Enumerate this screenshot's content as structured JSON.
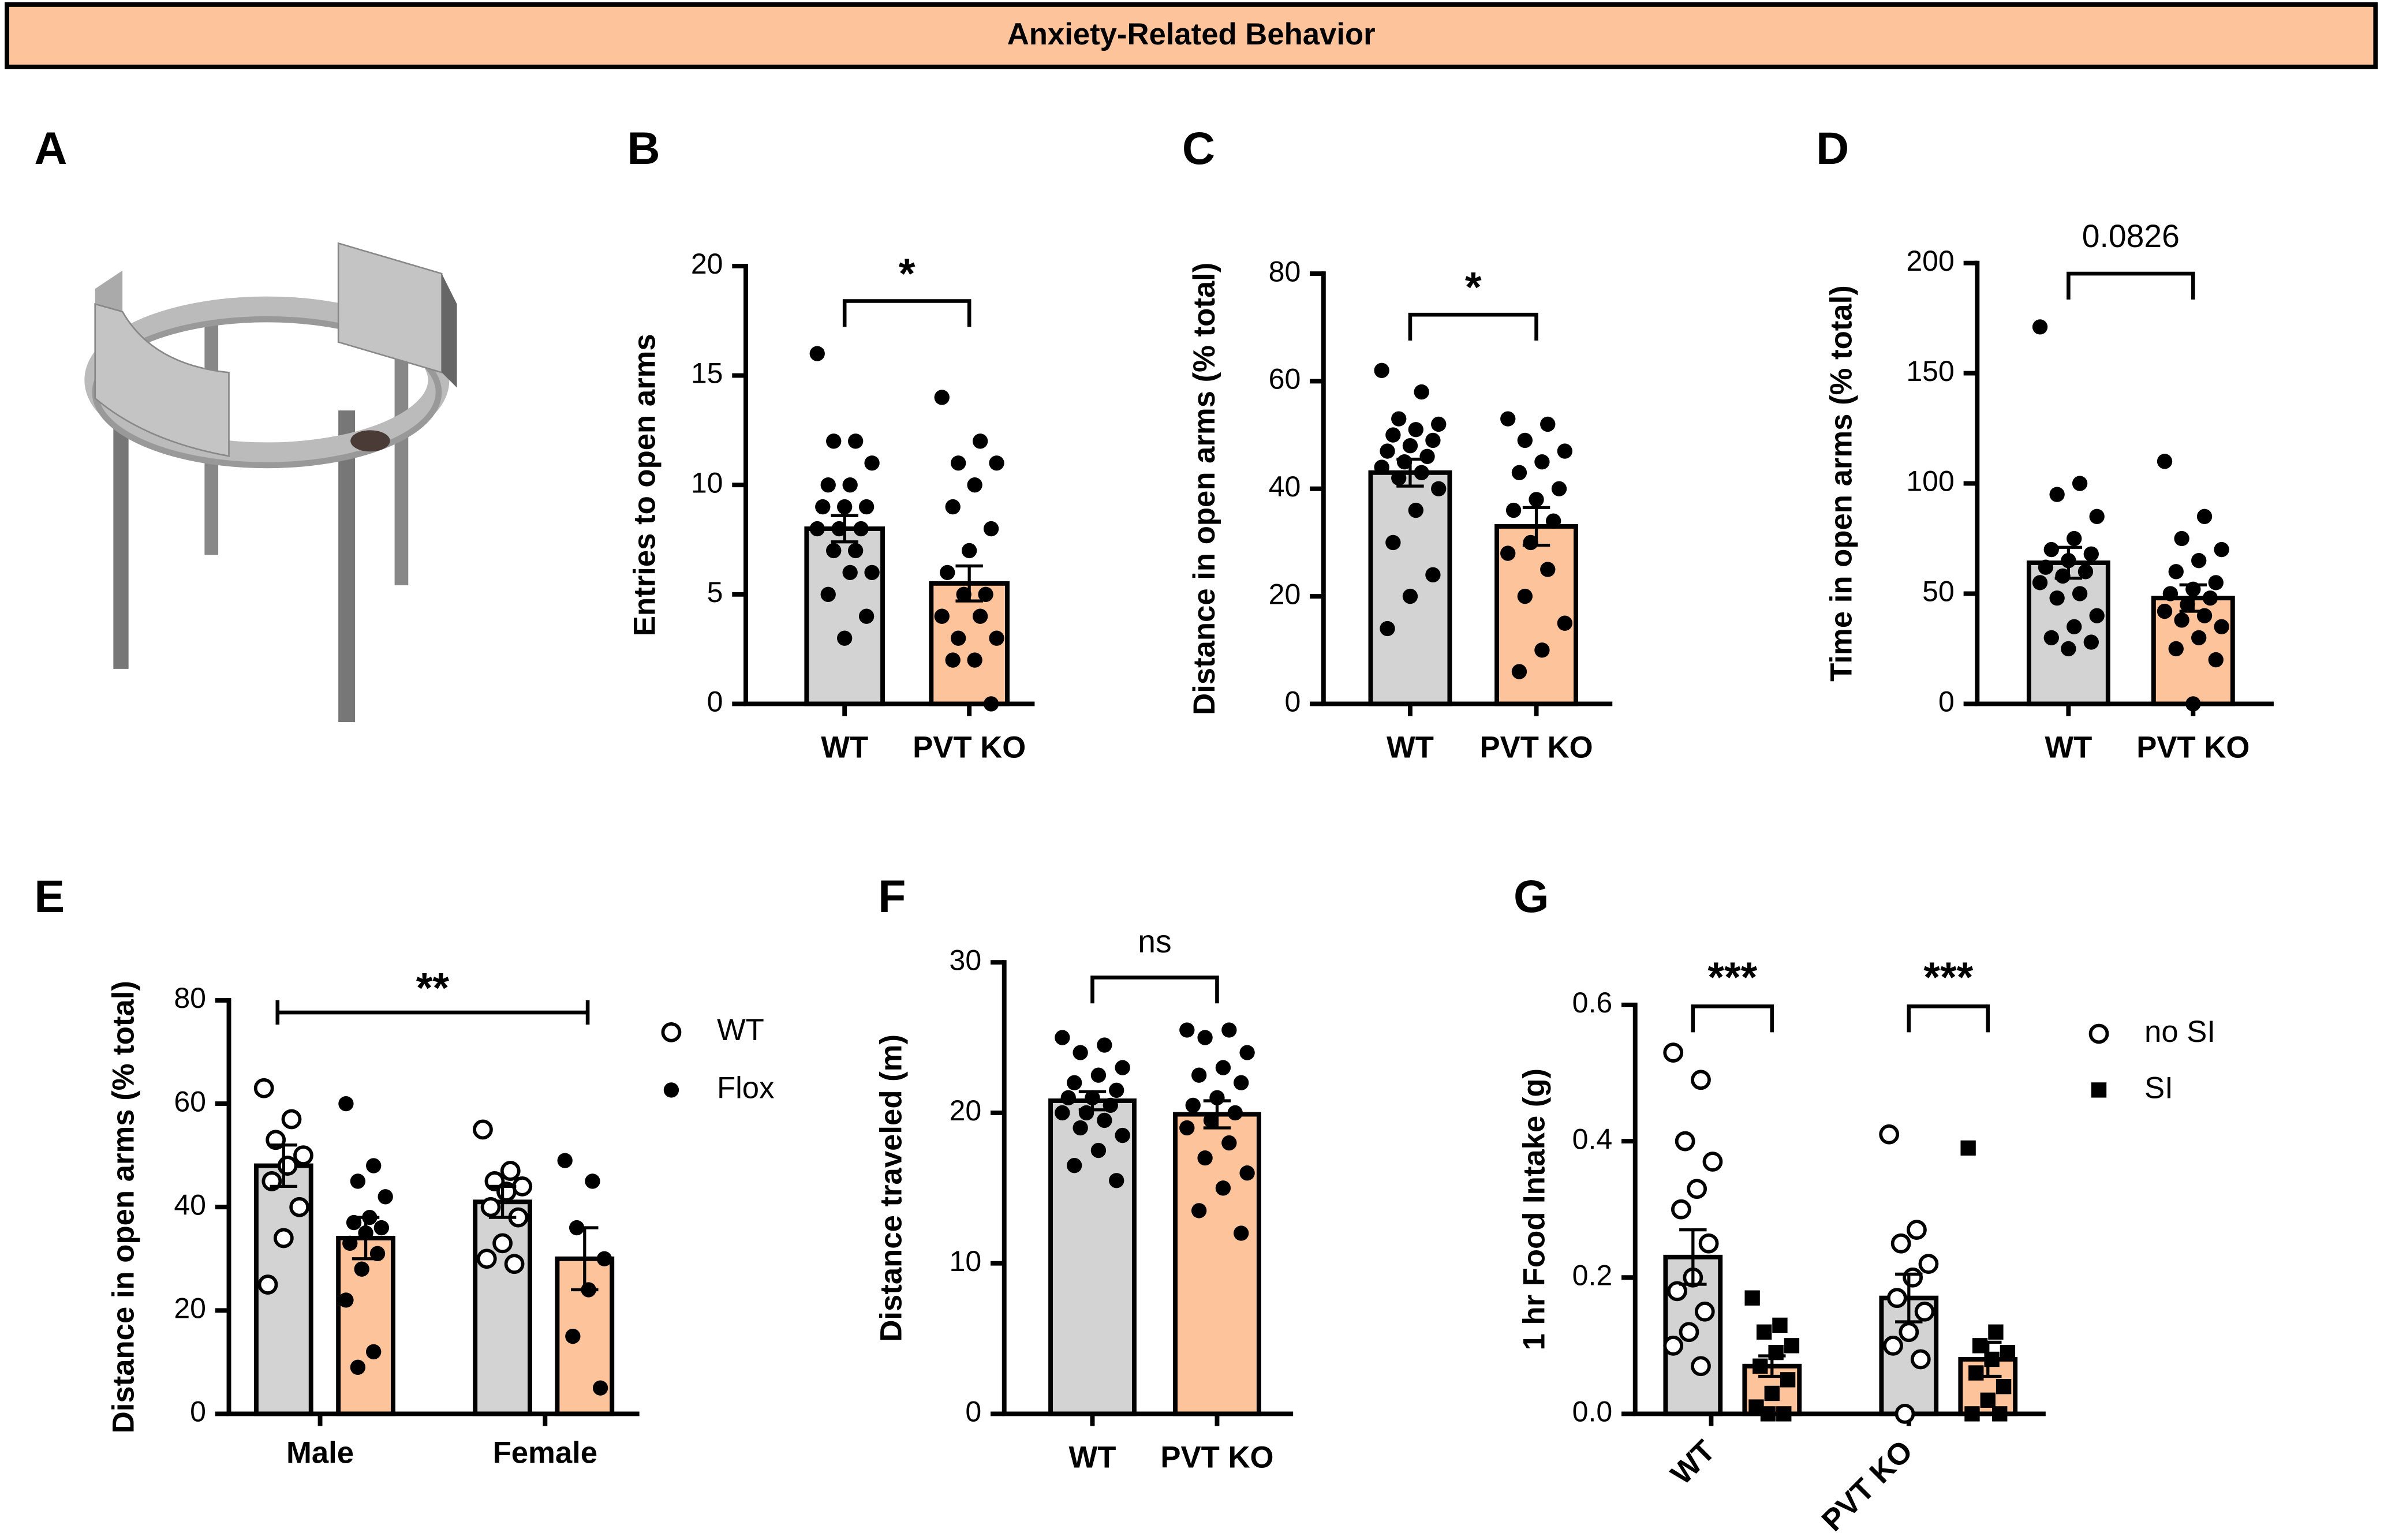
{
  "header": {
    "title": "Anxiety-Related Behavior"
  },
  "illustration": {
    "panel": "A"
  },
  "chart_data": [
    {
      "type": "bar",
      "panel": "B",
      "ylabel": "Entries to open arms",
      "categories": [
        "WT",
        "PVT KO"
      ],
      "values": [
        8.0,
        5.5
      ],
      "errors": [
        0.6,
        0.8
      ],
      "colors": [
        "#d3d3d3",
        "#fdc49c"
      ],
      "marker": "filled-circle",
      "points": [
        [
          16,
          12,
          12,
          11,
          10,
          10,
          9,
          9,
          9,
          8,
          8,
          8,
          7,
          7,
          6,
          6,
          5,
          4,
          3
        ],
        [
          14,
          12,
          11,
          11,
          10,
          9,
          8,
          7,
          6,
          5,
          5,
          4,
          4,
          3,
          3,
          2,
          2,
          0
        ]
      ],
      "ylim": [
        0,
        20
      ],
      "yticks": [
        0,
        5,
        10,
        15,
        20
      ],
      "annotations": [
        "*"
      ]
    },
    {
      "type": "bar",
      "panel": "C",
      "ylabel": "Distance in open arms (% total)",
      "categories": [
        "WT",
        "PVT KO"
      ],
      "values": [
        43,
        33
      ],
      "errors": [
        2.5,
        3.5
      ],
      "colors": [
        "#d3d3d3",
        "#fdc49c"
      ],
      "marker": "filled-circle",
      "points": [
        [
          62,
          58,
          53,
          52,
          51,
          50,
          49,
          48,
          47,
          46,
          45,
          44,
          43,
          42,
          40,
          36,
          30,
          24,
          20,
          14
        ],
        [
          53,
          52,
          49,
          47,
          45,
          43,
          40,
          38,
          36,
          34,
          30,
          28,
          25,
          20,
          15,
          10,
          6
        ]
      ],
      "ylim": [
        0,
        80
      ],
      "yticks": [
        0,
        20,
        40,
        60,
        80
      ],
      "annotations": [
        "*"
      ]
    },
    {
      "type": "bar",
      "panel": "D",
      "ylabel": "Time in open arms (% total)",
      "categories": [
        "WT",
        "PVT KO"
      ],
      "values": [
        64,
        48
      ],
      "errors": [
        7,
        6
      ],
      "colors": [
        "#d3d3d3",
        "#fdc49c"
      ],
      "marker": "filled-circle",
      "points": [
        [
          171,
          100,
          95,
          85,
          75,
          70,
          68,
          65,
          62,
          60,
          58,
          55,
          50,
          48,
          40,
          35,
          30,
          28,
          25
        ],
        [
          110,
          85,
          75,
          70,
          65,
          60,
          55,
          52,
          50,
          48,
          45,
          42,
          40,
          38,
          35,
          30,
          25,
          20,
          0
        ]
      ],
      "ylim": [
        0,
        200
      ],
      "yticks": [
        0,
        50,
        100,
        150,
        200
      ],
      "annotations": [
        "0.0826"
      ]
    },
    {
      "type": "grouped_bar",
      "panel": "E",
      "ylabel": "Distance in open arms (% total)",
      "categories": [
        "Male",
        "Female"
      ],
      "series": [
        {
          "name": "WT",
          "color": "#d3d3d3",
          "marker": "open-circle",
          "values": [
            48,
            41
          ],
          "errors": [
            4,
            3
          ],
          "points": [
            [
              63,
              57,
              53,
              50,
              48,
              45,
              40,
              34,
              25
            ],
            [
              55,
              47,
              45,
              44,
              43,
              40,
              38,
              33,
              30,
              29
            ]
          ]
        },
        {
          "name": "Flox",
          "color": "#fdc49c",
          "marker": "filled-circle",
          "values": [
            34,
            30
          ],
          "errors": [
            4,
            6
          ],
          "points": [
            [
              60,
              48,
              45,
              42,
              38,
              37,
              36,
              35,
              33,
              31,
              28,
              22,
              12,
              9
            ],
            [
              49,
              45,
              36,
              30,
              24,
              15,
              5
            ]
          ]
        }
      ],
      "ylim": [
        0,
        80
      ],
      "yticks": [
        0,
        20,
        40,
        60,
        80
      ],
      "annotations": [
        "**"
      ]
    },
    {
      "type": "bar",
      "panel": "F",
      "ylabel": "Distance traveled (m)",
      "categories": [
        "WT",
        "PVT KO"
      ],
      "values": [
        20.8,
        19.9
      ],
      "errors": [
        0.6,
        0.9
      ],
      "colors": [
        "#d3d3d3",
        "#fdc49c"
      ],
      "marker": "filled-circle",
      "points": [
        [
          25,
          24.5,
          24,
          23,
          22.5,
          22,
          21.5,
          21,
          21,
          20.5,
          20,
          20,
          19.5,
          19,
          18.5,
          17.5,
          16.5,
          15.5
        ],
        [
          25.5,
          25.5,
          25,
          24,
          23,
          22.5,
          22,
          21,
          20.5,
          20,
          19.5,
          19,
          18,
          17,
          16,
          15,
          13.5,
          12
        ]
      ],
      "ylim": [
        0,
        30
      ],
      "yticks": [
        0,
        10,
        20,
        30
      ],
      "annotations": [
        "ns"
      ]
    },
    {
      "type": "grouped_bar",
      "panel": "G",
      "ylabel": "1 hr Food Intake (g)",
      "categories": [
        "WT",
        "PVT KO"
      ],
      "series": [
        {
          "name": "no SI",
          "color": "#d3d3d3",
          "marker": "open-circle",
          "values": [
            0.23,
            0.17
          ],
          "errors": [
            0.04,
            0.035
          ],
          "points": [
            [
              0.53,
              0.49,
              0.4,
              0.37,
              0.33,
              0.3,
              0.25,
              0.2,
              0.18,
              0.15,
              0.12,
              0.1,
              0.07
            ],
            [
              0.41,
              0.27,
              0.25,
              0.22,
              0.2,
              0.17,
              0.15,
              0.12,
              0.1,
              0.08,
              0
            ]
          ]
        },
        {
          "name": "SI",
          "color": "#fdc49c",
          "marker": "filled-square",
          "values": [
            0.07,
            0.08
          ],
          "errors": [
            0.015,
            0.025
          ],
          "points": [
            [
              0.17,
              0.13,
              0.12,
              0.1,
              0.09,
              0.07,
              0.05,
              0.03,
              0.01,
              0,
              0
            ],
            [
              0.39,
              0.12,
              0.1,
              0.09,
              0.08,
              0.06,
              0.04,
              0.02,
              0,
              0
            ]
          ]
        }
      ],
      "ylim": [
        0,
        0.6
      ],
      "yticks": [
        {
          "value": 0,
          "label": "0.0"
        },
        0.2,
        0.4,
        0.6
      ],
      "annotations": [
        "***",
        "***"
      ]
    }
  ]
}
